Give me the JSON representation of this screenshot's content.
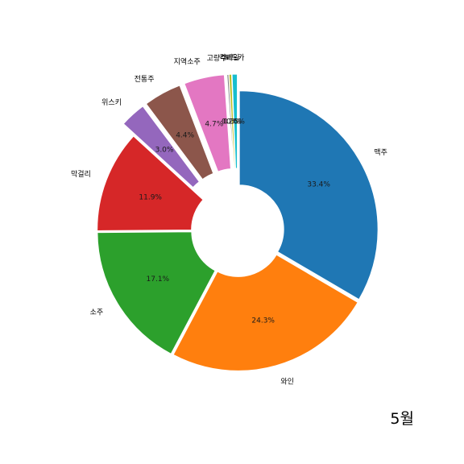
{
  "chart_data": {
    "type": "pie",
    "donut": true,
    "start_angle_deg": 90,
    "direction": "clockwise",
    "slices": [
      {
        "label": "맥주",
        "value": 33.4,
        "pct_label": "33.4%",
        "color": "#1f77b4",
        "exploded": false
      },
      {
        "label": "와인",
        "value": 24.3,
        "pct_label": "24.3%",
        "color": "#ff7f0e",
        "exploded": false
      },
      {
        "label": "소주",
        "value": 17.1,
        "pct_label": "17.1%",
        "color": "#2ca02c",
        "exploded": false
      },
      {
        "label": "막걸리",
        "value": 11.9,
        "pct_label": "11.9%",
        "color": "#d62728",
        "exploded": false
      },
      {
        "label": "위스키",
        "value": 3.0,
        "pct_label": "3.0%",
        "color": "#9467bd",
        "exploded": true
      },
      {
        "label": "전통주",
        "value": 4.4,
        "pct_label": "4.4%",
        "color": "#8c564b",
        "exploded": true
      },
      {
        "label": "지역소주",
        "value": 4.7,
        "pct_label": "4.7%",
        "color": "#e377c2",
        "exploded": true
      },
      {
        "label": "고량주",
        "value": 0.2,
        "pct_label": "0.2%",
        "color": "#7f7f7f",
        "exploded": true
      },
      {
        "label": "칵테일",
        "value": 0.3,
        "pct_label": "0.3%",
        "color": "#bcbd22",
        "exploded": true
      },
      {
        "label": "보드카",
        "value": 0.6,
        "pct_label": "0.6%",
        "color": "#17becf",
        "exploded": true
      }
    ]
  },
  "month_label": "5월"
}
